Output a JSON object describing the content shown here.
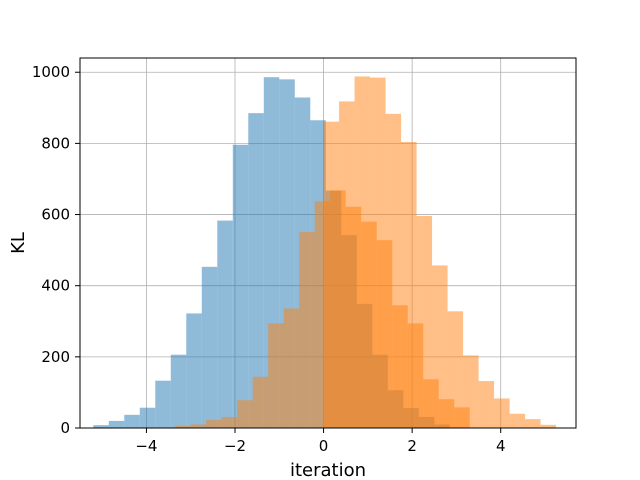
{
  "chart_data": {
    "type": "bar",
    "title": "",
    "xlabel": "iteration",
    "ylabel": "KL",
    "xlim": [
      -5.5,
      5.7
    ],
    "ylim": [
      0,
      1040
    ],
    "grid": true,
    "bar_alpha": 0.5,
    "xticks": [
      -4,
      -2,
      0,
      2,
      4
    ],
    "yticks": [
      0,
      200,
      400,
      600,
      800,
      1000
    ],
    "series": [
      {
        "color": "#1f77b4",
        "bin_start": -5.2,
        "bin_width": 0.35,
        "values": [
          8,
          20,
          37,
          57,
          133,
          206,
          322,
          453,
          583,
          796,
          885,
          986,
          980,
          929,
          865,
          667,
          542,
          349,
          206,
          106,
          56,
          31,
          10
        ]
      },
      {
        "color": "#ff7f0e",
        "bin_start": -3.35,
        "bin_width": 0.35,
        "values": [
          6,
          10,
          23,
          31,
          78,
          144,
          294,
          336,
          551,
          637,
          668,
          622,
          580,
          528,
          345,
          294,
          137,
          81,
          58
        ]
      },
      {
        "color": "#ff7f0e",
        "bin_start": 0.0,
        "bin_width": 0.35,
        "values": [
          861,
          918,
          988,
          985,
          883,
          804,
          596,
          457,
          328,
          204,
          132,
          83,
          40,
          25,
          9
        ]
      }
    ]
  }
}
